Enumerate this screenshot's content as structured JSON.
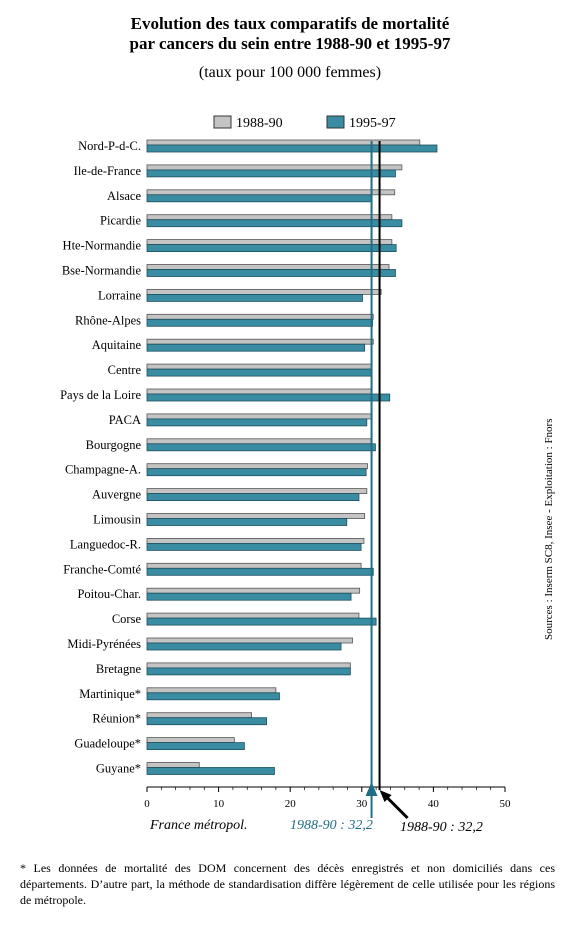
{
  "chart_data": {
    "type": "bar",
    "orientation": "horizontal",
    "title": "Evolution des taux  comparatifs de mortalité par cancers du sein entre 1988-90 et 1995-97",
    "title_lines": [
      "Evolution des taux  comparatifs de mortalité",
      "par cancers du sein entre 1988-90 et 1995-97"
    ],
    "subtitle": "(taux pour 100 000 femmes)",
    "categories": [
      "Nord-P-d-C.",
      "Ile-de-France",
      "Alsace",
      "Picardie",
      "Hte-Normandie",
      "Bse-Normandie",
      "Lorraine",
      "Rhône-Alpes",
      "Aquitaine",
      "Centre",
      "Pays de la Loire",
      "PACA",
      "Bourgogne",
      "Champagne-A.",
      "Auvergne",
      "Limousin",
      "Languedoc-R.",
      "Franche-Comté",
      "Poitou-Char.",
      "Corse",
      "Midi-Pyrénées",
      "Bretagne",
      "Martinique*",
      "Réunion*",
      "Guadeloupe*",
      "Guyane*"
    ],
    "series": [
      {
        "name": "1988-90",
        "color": "#c4c4c4",
        "values": [
          38.1,
          35.6,
          34.6,
          34.2,
          34.2,
          33.8,
          32.7,
          31.6,
          31.6,
          31.4,
          31.4,
          31.4,
          31.3,
          30.8,
          30.7,
          30.4,
          30.3,
          29.9,
          29.7,
          29.6,
          28.7,
          28.4,
          18.0,
          14.6,
          12.2,
          7.3
        ]
      },
      {
        "name": "1995-97",
        "color": "#3a8ca2",
        "values": [
          40.5,
          34.7,
          31.4,
          35.6,
          34.8,
          34.7,
          30.1,
          31.5,
          30.4,
          31.3,
          33.9,
          30.7,
          31.9,
          30.6,
          29.6,
          27.9,
          29.9,
          31.6,
          28.5,
          32.0,
          27.1,
          28.4,
          18.5,
          16.7,
          13.6,
          17.8
        ]
      }
    ],
    "xlim": [
      0,
      50
    ],
    "xticks": [
      0,
      10,
      20,
      30,
      40,
      50
    ],
    "grid": false,
    "legend_position": "top",
    "reference_lines": [
      {
        "value": 32.2,
        "label": "1988-90 : 32,2",
        "color": "#1f6e85"
      },
      {
        "value": 32.2,
        "label": "1988-90 : 32,2",
        "color": "#000000"
      }
    ],
    "reference_caption": "France métropol."
  },
  "source": "Sources : Inserm SC8, Insee  -   Exploitation : Fnors",
  "footnote": "* Les données de mortalité des DOM concernent des décès enregistrés et non domiciliés dans ces départements. D’autre part, la méthode de standardisation diffère légèrement de celle utilisée pour les régions de métropole."
}
